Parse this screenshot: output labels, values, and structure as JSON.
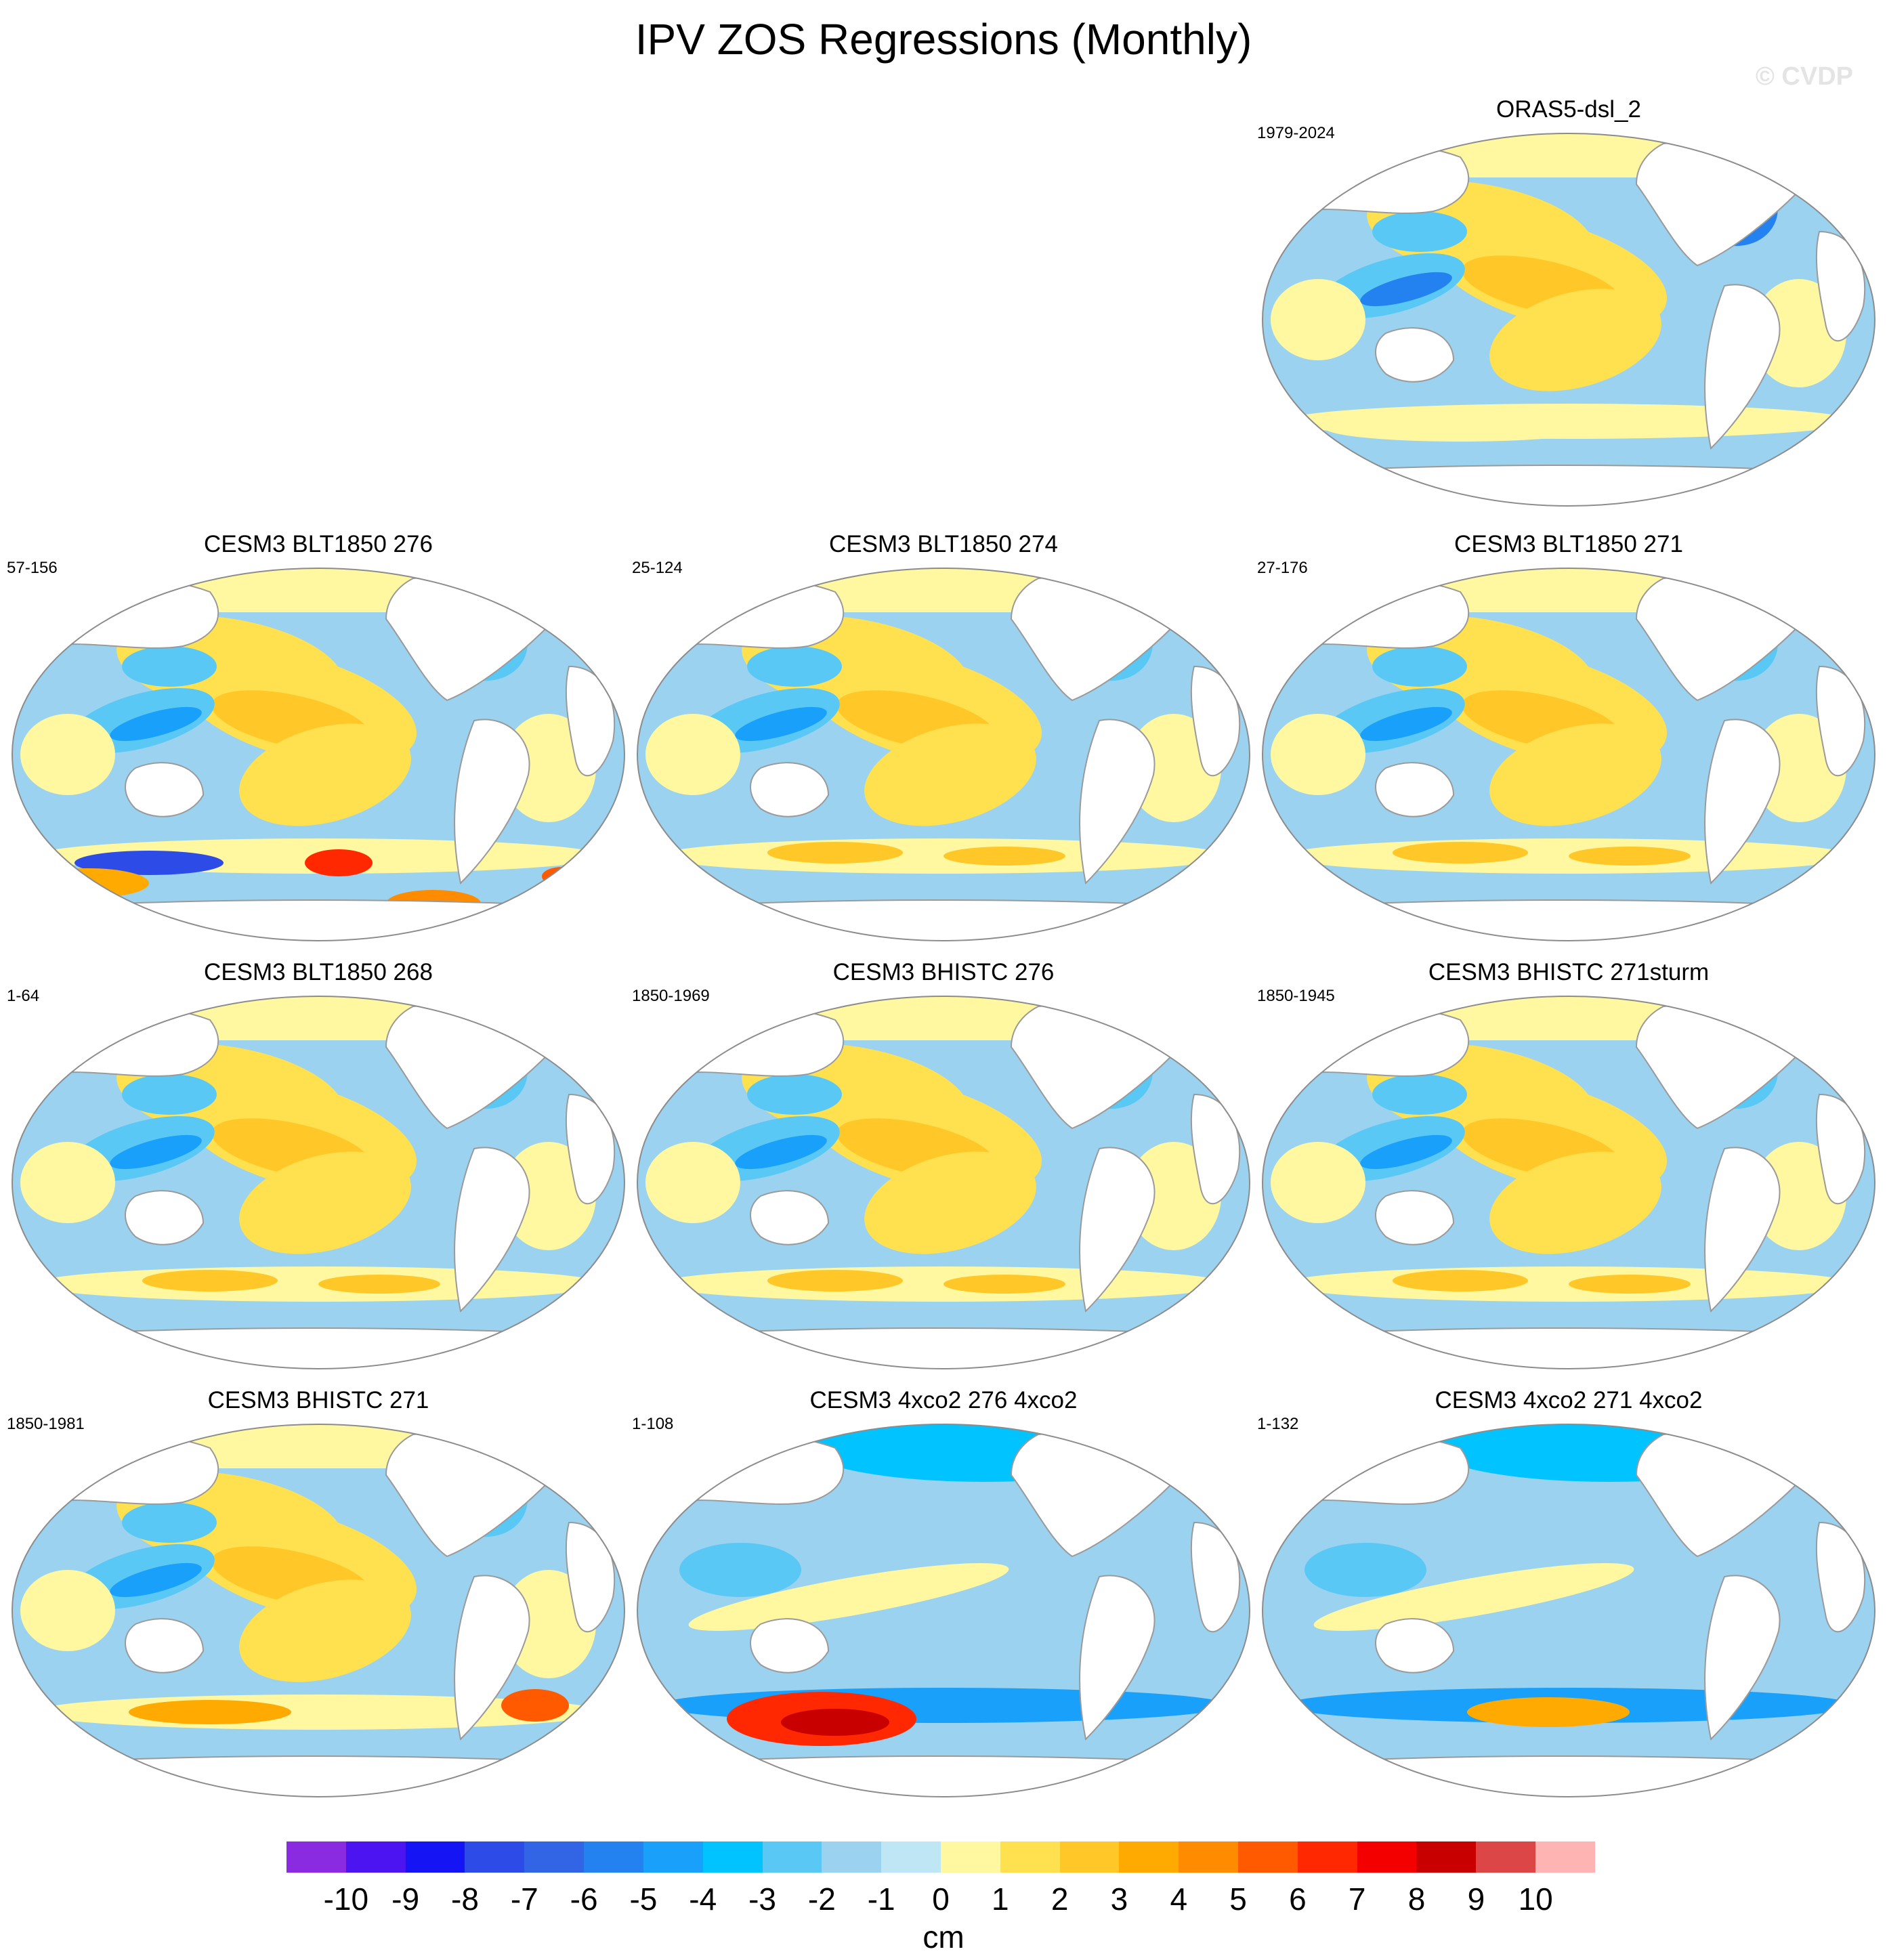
{
  "title": "IPV ZOS Regressions (Monthly)",
  "watermark": "© CVDP",
  "panels": [
    {
      "name": "ORAS5-dsl_2",
      "years": "1979-2024",
      "pattern": "obs"
    },
    {
      "name": "CESM3 BLT1850 276",
      "years": "57-156",
      "pattern": "pi_strong_so"
    },
    {
      "name": "CESM3 BLT1850 274",
      "years": "25-124",
      "pattern": "pi"
    },
    {
      "name": "CESM3 BLT1850 271",
      "years": "27-176",
      "pattern": "pi"
    },
    {
      "name": "CESM3 BLT1850 268",
      "years": "1-64",
      "pattern": "pi"
    },
    {
      "name": "CESM3 BHISTC 276",
      "years": "1850-1969",
      "pattern": "pi"
    },
    {
      "name": "CESM3 BHISTC 271sturm",
      "years": "1850-1945",
      "pattern": "pi"
    },
    {
      "name": "CESM3 BHISTC 271",
      "years": "1850-1981",
      "pattern": "pi_so_red"
    },
    {
      "name": "CESM3 4xco2 276 4xco2",
      "years": "1-108",
      "pattern": "co2_so_red"
    },
    {
      "name": "CESM3 4xco2 271 4xco2",
      "years": "1-132",
      "pattern": "co2"
    }
  ],
  "colorbar": {
    "units": "cm",
    "labels": [
      "-10",
      "-9",
      "-8",
      "-7",
      "-6",
      "-5",
      "-4",
      "-3",
      "-2",
      "-1",
      "0",
      "1",
      "2",
      "3",
      "4",
      "5",
      "6",
      "7",
      "8",
      "9",
      "10"
    ],
    "colors": [
      "#8a2be2",
      "#4b14f0",
      "#1414f5",
      "#2d4be6",
      "#3264e6",
      "#2382f0",
      "#19a0fa",
      "#00c3ff",
      "#5ac8f5",
      "#9bd2f0",
      "#bee6f5",
      "#fff8a0",
      "#ffe150",
      "#ffc828",
      "#ffaa00",
      "#ff8c00",
      "#ff5a00",
      "#ff2800",
      "#f50000",
      "#c80000",
      "#dc4646",
      "#ffb4b4"
    ]
  }
}
